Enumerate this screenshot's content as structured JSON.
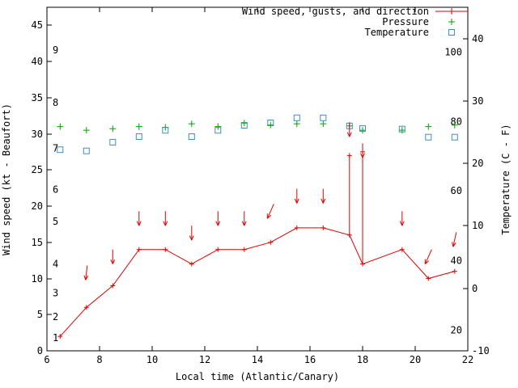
{
  "chart_data": {
    "type": "line",
    "xlabel": "Local time (Atlantic/Canary)",
    "ylabel": "Wind speed (kt - Beaufort)",
    "y2label": "Temperature (C - F)",
    "xlim": [
      6,
      22
    ],
    "ylim": [
      0,
      47.5
    ],
    "y2lim": [
      -10,
      45
    ],
    "x_ticks": [
      6,
      8,
      10,
      12,
      14,
      16,
      18,
      20,
      22
    ],
    "y_ticks": [
      0,
      5,
      10,
      15,
      20,
      25,
      30,
      35,
      40,
      45
    ],
    "y2_ticks": [
      -10,
      0,
      10,
      20,
      30,
      40
    ],
    "grid": false,
    "legend": {
      "position": "top-right",
      "entries": [
        {
          "label": "Wind speed, gusts, and direction",
          "marker": "line-plus",
          "color": "#e00000"
        },
        {
          "label": "Pressure",
          "marker": "plus",
          "color": "#00a000"
        },
        {
          "label": "Temperature",
          "marker": "square",
          "color": "#3f8fbf"
        }
      ]
    },
    "beaufort_scale": [
      {
        "beaufort": 1,
        "kt": 1.8
      },
      {
        "beaufort": 2,
        "kt": 4.7
      },
      {
        "beaufort": 3,
        "kt": 8.0
      },
      {
        "beaufort": 4,
        "kt": 12.0
      },
      {
        "beaufort": 5,
        "kt": 17.9
      },
      {
        "beaufort": 6,
        "kt": 22.3
      },
      {
        "beaufort": 7,
        "kt": 28.0
      },
      {
        "beaufort": 8,
        "kt": 34.3
      },
      {
        "beaufort": 9,
        "kt": 41.6
      }
    ],
    "fahrenheit_scale": [
      {
        "fahrenheit": 20,
        "celsius": -6.7
      },
      {
        "fahrenheit": 40,
        "celsius": 4.4
      },
      {
        "fahrenheit": 60,
        "celsius": 15.6
      },
      {
        "fahrenheit": 80,
        "celsius": 26.7
      },
      {
        "fahrenheit": 100,
        "celsius": 37.8
      }
    ],
    "x": [
      6.5,
      7.5,
      8.5,
      9.5,
      10.5,
      11.5,
      12.5,
      13.5,
      14.5,
      15.5,
      16.5,
      17.5,
      18,
      19.5,
      20.5,
      21.5
    ],
    "series": {
      "wind": {
        "color": "#e00000",
        "speed_kt": [
          2,
          6,
          9,
          14,
          14,
          12,
          14,
          14,
          15,
          17,
          17,
          16,
          12,
          14,
          10,
          11
        ],
        "gust_spikes": [
          {
            "x": 17.5,
            "base_kt": 16,
            "peak_kt": 27
          },
          {
            "x": 18,
            "base_kt": 12,
            "peak_kt": 27.5
          }
        ],
        "direction_arrows": [
          {
            "x": 7.5,
            "top_kt": 11.8,
            "tip_kt": 9.8,
            "dx": 1
          },
          {
            "x": 8.5,
            "top_kt": 14.0,
            "tip_kt": 12.0,
            "dx": 0
          },
          {
            "x": 9.5,
            "top_kt": 19.3,
            "tip_kt": 17.3,
            "dx": 0
          },
          {
            "x": 10.5,
            "top_kt": 19.3,
            "tip_kt": 17.3,
            "dx": 0
          },
          {
            "x": 11.5,
            "top_kt": 17.3,
            "tip_kt": 15.3,
            "dx": 0
          },
          {
            "x": 12.5,
            "top_kt": 19.3,
            "tip_kt": 17.3,
            "dx": 0
          },
          {
            "x": 13.5,
            "top_kt": 19.3,
            "tip_kt": 17.3,
            "dx": 0
          },
          {
            "x": 14.5,
            "top_kt": 20.3,
            "tip_kt": 18.3,
            "dx": 4
          },
          {
            "x": 15.5,
            "top_kt": 22.4,
            "tip_kt": 20.4,
            "dx": 0
          },
          {
            "x": 16.5,
            "top_kt": 22.4,
            "tip_kt": 20.4,
            "dx": 0
          },
          {
            "x": 17.5,
            "top_kt": 31.6,
            "tip_kt": 29.6,
            "dx": 0
          },
          {
            "x": 18,
            "top_kt": 28.7,
            "tip_kt": 26.7,
            "dx": 0
          },
          {
            "x": 19.5,
            "top_kt": 19.3,
            "tip_kt": 17.3,
            "dx": 0
          },
          {
            "x": 20.5,
            "top_kt": 14.0,
            "tip_kt": 12.0,
            "dx": 4
          },
          {
            "x": 21.5,
            "top_kt": 16.4,
            "tip_kt": 14.4,
            "dx": 2
          }
        ]
      },
      "pressure": {
        "color": "#00a000",
        "values": [
          31.0,
          30.5,
          30.7,
          31.0,
          30.9,
          31.4,
          31.0,
          31.5,
          31.2,
          31.4,
          31.4,
          31.1,
          30.5,
          30.5,
          31.0,
          31.2
        ]
      },
      "temperature": {
        "color": "#3f8fbf",
        "celsius": [
          22.2,
          22.0,
          23.4,
          24.3,
          25.3,
          24.3,
          25.3,
          26.1,
          26.5,
          27.3,
          27.3,
          26.0,
          25.6,
          25.5,
          24.2,
          24.2
        ]
      }
    }
  }
}
